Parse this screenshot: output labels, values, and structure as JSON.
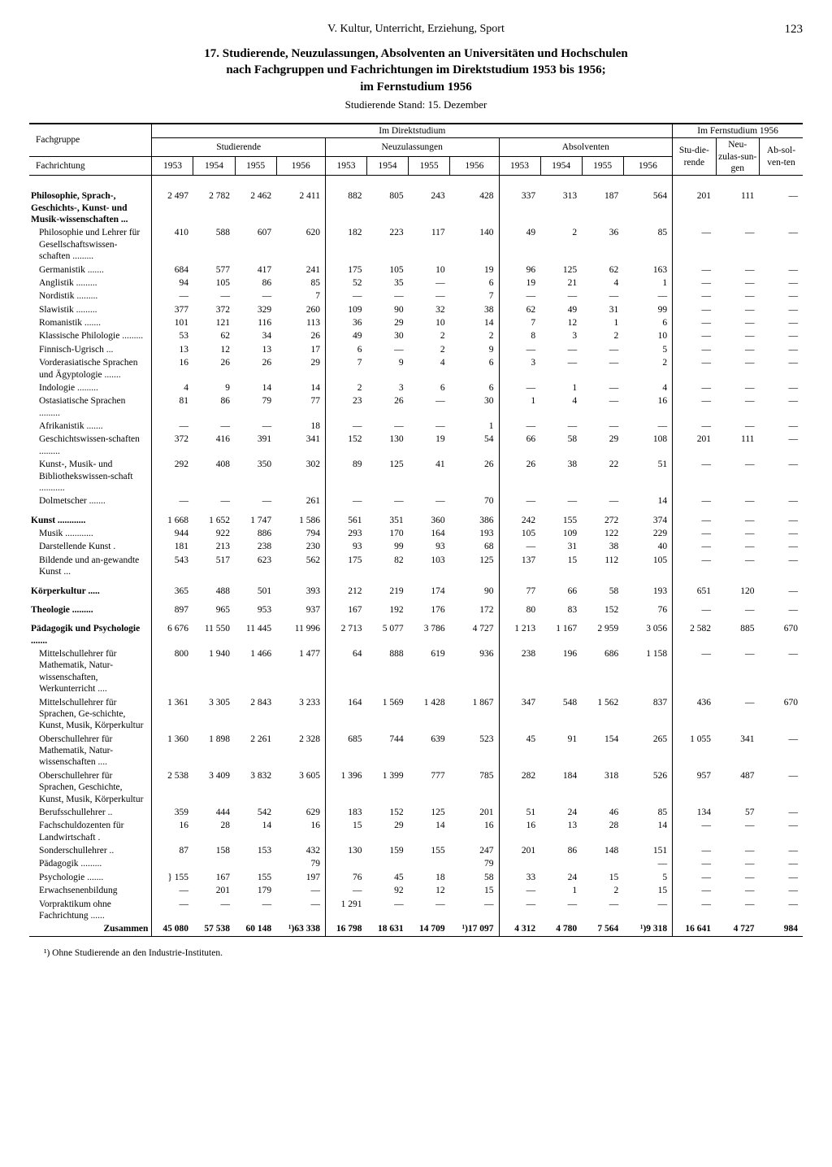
{
  "page": {
    "section_header": "V. Kultur, Unterricht, Erziehung, Sport",
    "page_number": "123",
    "title_l1": "17. Studierende, Neuzulassungen, Absolventen an Universitäten und Hochschulen",
    "title_l2": "nach Fachgruppen und Fachrichtungen im Direktstudium 1953 bis 1956;",
    "title_l3": "im Fernstudium 1956",
    "subtitle": "Studierende Stand: 15. Dezember",
    "footnote": "¹) Ohne Studierende an den Industrie-Instituten."
  },
  "header": {
    "col_group_label": "Fachgruppe",
    "col_subject_label": "Fachrichtung",
    "im_direkt": "Im Direktstudium",
    "im_fern": "Im Fernstudium 1956",
    "studierende": "Studierende",
    "neuzulassungen": "Neuzulassungen",
    "absolventen": "Absolventen",
    "y1953": "1953",
    "y1954": "1954",
    "y1955": "1955",
    "y1956": "1956",
    "fern_stu": "Stu-die-rende",
    "fern_neu": "Neu-zulas-sun-gen",
    "fern_abs": "Ab-sol-ven-ten"
  },
  "style": {
    "font_family": "Times New Roman",
    "text_color": "#000000",
    "background_color": "#ffffff",
    "rule_color": "#000000",
    "base_fontsize_pt": 11.5,
    "title_fontsize_pt": 15,
    "dash": "—"
  },
  "rows": [
    {
      "type": "section",
      "label": "Philosophie, Sprach-, Geschichts-, Kunst- und Musik-wissenschaften   ...",
      "v": [
        "2 497",
        "2 782",
        "2 462",
        "2 411",
        "882",
        "805",
        "243",
        "428",
        "337",
        "313",
        "187",
        "564",
        "201",
        "111",
        "—"
      ]
    },
    {
      "type": "sub",
      "label": "Philosophie und Lehrer für Gesellschaftswissen-schaften  .........",
      "v": [
        "410",
        "588",
        "607",
        "620",
        "182",
        "223",
        "117",
        "140",
        "49",
        "2",
        "36",
        "85",
        "—",
        "—",
        "—"
      ]
    },
    {
      "type": "sub",
      "label": "Germanistik .......",
      "v": [
        "684",
        "577",
        "417",
        "241",
        "175",
        "105",
        "10",
        "19",
        "96",
        "125",
        "62",
        "163",
        "—",
        "—",
        "—"
      ]
    },
    {
      "type": "sub",
      "label": "Anglistik .........",
      "v": [
        "94",
        "105",
        "86",
        "85",
        "52",
        "35",
        "—",
        "6",
        "19",
        "21",
        "4",
        "1",
        "—",
        "—",
        "—"
      ]
    },
    {
      "type": "sub",
      "label": "Nordistik .........",
      "v": [
        "—",
        "—",
        "—",
        "7",
        "—",
        "—",
        "—",
        "7",
        "—",
        "—",
        "—",
        "—",
        "—",
        "—",
        "—"
      ]
    },
    {
      "type": "sub",
      "label": "Slawistik .........",
      "v": [
        "377",
        "372",
        "329",
        "260",
        "109",
        "90",
        "32",
        "38",
        "62",
        "49",
        "31",
        "99",
        "—",
        "—",
        "—"
      ]
    },
    {
      "type": "sub",
      "label": "Romanistik  .......",
      "v": [
        "101",
        "121",
        "116",
        "113",
        "36",
        "29",
        "10",
        "14",
        "7",
        "12",
        "1",
        "6",
        "—",
        "—",
        "—"
      ]
    },
    {
      "type": "sub",
      "label": "Klassische Philologie .........",
      "v": [
        "53",
        "62",
        "34",
        "26",
        "49",
        "30",
        "2",
        "2",
        "8",
        "3",
        "2",
        "10",
        "—",
        "—",
        "—"
      ]
    },
    {
      "type": "sub",
      "label": "Finnisch-Ugrisch ...",
      "v": [
        "13",
        "12",
        "13",
        "17",
        "6",
        "—",
        "2",
        "9",
        "—",
        "—",
        "—",
        "5",
        "—",
        "—",
        "—"
      ]
    },
    {
      "type": "sub",
      "label": "Vorderasiatische Sprachen und Ägyptologie  .......",
      "v": [
        "16",
        "26",
        "26",
        "29",
        "7",
        "9",
        "4",
        "6",
        "3",
        "—",
        "—",
        "2",
        "—",
        "—",
        "—"
      ]
    },
    {
      "type": "sub",
      "label": "Indologie  .........",
      "v": [
        "4",
        "9",
        "14",
        "14",
        "2",
        "3",
        "6",
        "6",
        "—",
        "1",
        "—",
        "4",
        "—",
        "—",
        "—"
      ]
    },
    {
      "type": "sub",
      "label": "Ostasiatische Sprachen  .........",
      "v": [
        "81",
        "86",
        "79",
        "77",
        "23",
        "26",
        "—",
        "30",
        "1",
        "4",
        "—",
        "16",
        "—",
        "—",
        "—"
      ]
    },
    {
      "type": "sub",
      "label": "Afrikanistik .......",
      "v": [
        "—",
        "—",
        "—",
        "18",
        "—",
        "—",
        "—",
        "1",
        "—",
        "—",
        "—",
        "—",
        "—",
        "—",
        "—"
      ]
    },
    {
      "type": "sub",
      "label": "Geschichtswissen-schaften  .........",
      "v": [
        "372",
        "416",
        "391",
        "341",
        "152",
        "130",
        "19",
        "54",
        "66",
        "58",
        "29",
        "108",
        "201",
        "111",
        "—"
      ]
    },
    {
      "type": "sub",
      "label": "Kunst-, Musik- und Bibliothekswissen-schaft  ...........",
      "v": [
        "292",
        "408",
        "350",
        "302",
        "89",
        "125",
        "41",
        "26",
        "26",
        "38",
        "22",
        "51",
        "—",
        "—",
        "—"
      ]
    },
    {
      "type": "sub",
      "label": "Dolmetscher .......",
      "v": [
        "—",
        "—",
        "—",
        "261",
        "—",
        "—",
        "—",
        "70",
        "—",
        "—",
        "—",
        "14",
        "—",
        "—",
        "—"
      ]
    },
    {
      "type": "section",
      "label": "Kunst ............",
      "v": [
        "1 668",
        "1 652",
        "1 747",
        "1 586",
        "561",
        "351",
        "360",
        "386",
        "242",
        "155",
        "272",
        "374",
        "—",
        "—",
        "—"
      ]
    },
    {
      "type": "sub",
      "label": "Musik  ............",
      "v": [
        "944",
        "922",
        "886",
        "794",
        "293",
        "170",
        "164",
        "193",
        "105",
        "109",
        "122",
        "229",
        "—",
        "—",
        "—"
      ]
    },
    {
      "type": "sub",
      "label": "Darstellende Kunst .",
      "v": [
        "181",
        "213",
        "238",
        "230",
        "93",
        "99",
        "93",
        "68",
        "—",
        "31",
        "38",
        "40",
        "—",
        "—",
        "—"
      ]
    },
    {
      "type": "sub",
      "label": "Bildende und an-gewandte Kunst ...",
      "v": [
        "543",
        "517",
        "623",
        "562",
        "175",
        "82",
        "103",
        "125",
        "137",
        "15",
        "112",
        "105",
        "—",
        "—",
        "—"
      ]
    },
    {
      "type": "section",
      "label": "Körperkultur  .....",
      "v": [
        "365",
        "488",
        "501",
        "393",
        "212",
        "219",
        "174",
        "90",
        "77",
        "66",
        "58",
        "193",
        "651",
        "120",
        "—"
      ]
    },
    {
      "type": "section",
      "label": "Theologie .........",
      "v": [
        "897",
        "965",
        "953",
        "937",
        "167",
        "192",
        "176",
        "172",
        "80",
        "83",
        "152",
        "76",
        "—",
        "—",
        "—"
      ]
    },
    {
      "type": "section",
      "label": "Pädagogik und Psychologie .......",
      "v": [
        "6 676",
        "11 550",
        "11 445",
        "11 996",
        "2 713",
        "5 077",
        "3 786",
        "4 727",
        "1 213",
        "1 167",
        "2 959",
        "3 056",
        "2 582",
        "885",
        "670"
      ]
    },
    {
      "type": "sub",
      "label": "Mittelschullehrer für Mathematik, Natur-wissenschaften, Werkunterricht ....",
      "v": [
        "800",
        "1 940",
        "1 466",
        "1 477",
        "64",
        "888",
        "619",
        "936",
        "238",
        "196",
        "686",
        "1 158",
        "—",
        "—",
        "—"
      ]
    },
    {
      "type": "sub",
      "label": "Mittelschullehrer für Sprachen, Ge-schichte, Kunst, Musik, Körperkultur",
      "v": [
        "1 361",
        "3 305",
        "2 843",
        "3 233",
        "164",
        "1 569",
        "1 428",
        "1 867",
        "347",
        "548",
        "1 562",
        "837",
        "436",
        "—",
        "670"
      ]
    },
    {
      "type": "sub",
      "label": "Oberschullehrer für Mathematik, Natur-wissenschaften  ....",
      "v": [
        "1 360",
        "1 898",
        "2 261",
        "2 328",
        "685",
        "744",
        "639",
        "523",
        "45",
        "91",
        "154",
        "265",
        "1 055",
        "341",
        "—"
      ]
    },
    {
      "type": "sub",
      "label": "Oberschullehrer für Sprachen, Geschichte, Kunst, Musik, Körperkultur",
      "v": [
        "2 538",
        "3 409",
        "3 832",
        "3 605",
        "1 396",
        "1 399",
        "777",
        "785",
        "282",
        "184",
        "318",
        "526",
        "957",
        "487",
        "—"
      ]
    },
    {
      "type": "sub",
      "label": "Berufsschullehrer  ..",
      "v": [
        "359",
        "444",
        "542",
        "629",
        "183",
        "152",
        "125",
        "201",
        "51",
        "24",
        "46",
        "85",
        "134",
        "57",
        "—"
      ]
    },
    {
      "type": "sub",
      "label": "Fachschuldozenten für Landwirtschaft .",
      "v": [
        "16",
        "28",
        "14",
        "16",
        "15",
        "29",
        "14",
        "16",
        "16",
        "13",
        "28",
        "14",
        "—",
        "—",
        "—"
      ]
    },
    {
      "type": "sub",
      "label": "Sonderschullehrer ..",
      "v": [
        "87",
        "158",
        "153",
        "432",
        "130",
        "159",
        "155",
        "247",
        "201",
        "86",
        "148",
        "151",
        "—",
        "—",
        "—"
      ]
    },
    {
      "type": "sub",
      "label": "Pädagogik .........",
      "v": [
        "",
        "",
        "",
        "79",
        "",
        "",
        "",
        "79",
        "",
        "",
        "",
        "—",
        "—",
        "—",
        "—"
      ]
    },
    {
      "type": "sub",
      "label": "Psychologie .......",
      "v": [
        "}  155",
        "167",
        "155",
        "197",
        "76",
        "45",
        "18",
        "58",
        "33",
        "24",
        "15",
        "5",
        "—",
        "—",
        "—"
      ]
    },
    {
      "type": "sub",
      "label": "Erwachsenenbildung",
      "v": [
        "—",
        "201",
        "179",
        "—",
        "—",
        "92",
        "12",
        "15",
        "—",
        "1",
        "2",
        "15",
        "—",
        "—",
        "—"
      ]
    },
    {
      "type": "sub",
      "label": "Vorpraktikum ohne Fachrichtung ......",
      "v": [
        "—",
        "—",
        "—",
        "—",
        "1 291",
        "—",
        "—",
        "—",
        "—",
        "—",
        "—",
        "—",
        "—",
        "—",
        "—"
      ]
    },
    {
      "type": "total",
      "label": "Zusammen",
      "v": [
        "45 080",
        "57 538",
        "60 148",
        "¹)63 338",
        "16 798",
        "18 631",
        "14 709",
        "¹)17 097",
        "4 312",
        "4 780",
        "7 564",
        "¹)9 318",
        "16 641",
        "4 727",
        "984"
      ]
    }
  ]
}
